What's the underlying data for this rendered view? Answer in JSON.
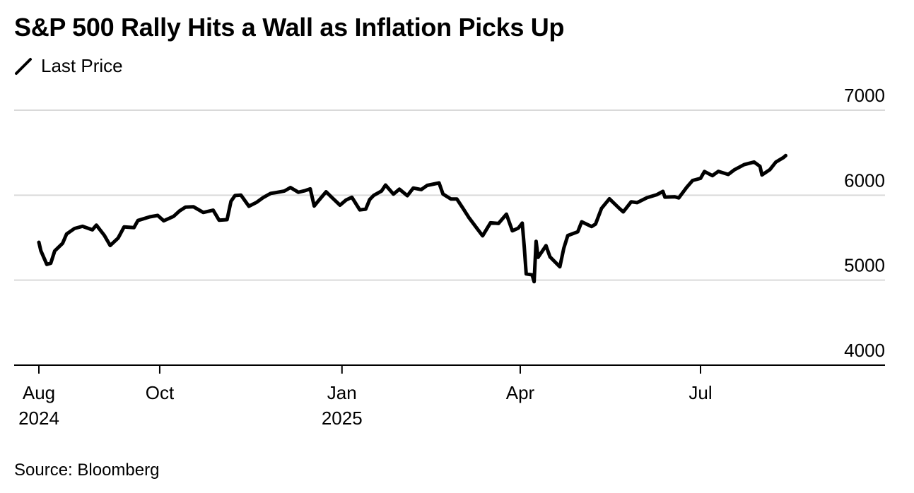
{
  "title": "S&P 500 Rally Hits a Wall as Inflation Picks Up",
  "legend": {
    "label": "Last Price"
  },
  "source": "Source: Bloomberg",
  "chart_data": {
    "type": "line",
    "title": "S&P 500 Rally Hits a Wall as Inflation Picks Up",
    "xlabel": "",
    "ylabel": "",
    "ylim": [
      4000,
      7000
    ],
    "xlim": [
      "2024-07-29",
      "2025-09-18"
    ],
    "y_ticks": [
      4000,
      5000,
      6000,
      7000
    ],
    "y_tick_labels": [
      "4000",
      "5000",
      "6000",
      "7000"
    ],
    "x_ticks": [
      {
        "date": "2024-08-01",
        "label": "Aug",
        "sublabel": "2024"
      },
      {
        "date": "2024-10-01",
        "label": "Oct",
        "sublabel": ""
      },
      {
        "date": "2025-01-01",
        "label": "Jan",
        "sublabel": "2025"
      },
      {
        "date": "2025-04-01",
        "label": "Apr",
        "sublabel": ""
      },
      {
        "date": "2025-07-01",
        "label": "Jul",
        "sublabel": ""
      }
    ],
    "grid": true,
    "legend_position": "top-left",
    "series": [
      {
        "name": "Last Price",
        "color": "#000000",
        "points": [
          [
            "2024-08-01",
            5446
          ],
          [
            "2024-08-02",
            5346
          ],
          [
            "2024-08-05",
            5186
          ],
          [
            "2024-08-07",
            5199
          ],
          [
            "2024-08-09",
            5344
          ],
          [
            "2024-08-13",
            5434
          ],
          [
            "2024-08-15",
            5543
          ],
          [
            "2024-08-19",
            5608
          ],
          [
            "2024-08-23",
            5634
          ],
          [
            "2024-08-28",
            5592
          ],
          [
            "2024-08-30",
            5648
          ],
          [
            "2024-09-03",
            5528
          ],
          [
            "2024-09-06",
            5408
          ],
          [
            "2024-09-10",
            5495
          ],
          [
            "2024-09-13",
            5626
          ],
          [
            "2024-09-18",
            5618
          ],
          [
            "2024-09-20",
            5702
          ],
          [
            "2024-09-26",
            5745
          ],
          [
            "2024-09-30",
            5762
          ],
          [
            "2024-10-03",
            5699
          ],
          [
            "2024-10-08",
            5751
          ],
          [
            "2024-10-11",
            5815
          ],
          [
            "2024-10-14",
            5859
          ],
          [
            "2024-10-18",
            5864
          ],
          [
            "2024-10-23",
            5797
          ],
          [
            "2024-10-28",
            5823
          ],
          [
            "2024-10-31",
            5705
          ],
          [
            "2024-11-04",
            5712
          ],
          [
            "2024-11-06",
            5929
          ],
          [
            "2024-11-08",
            5995
          ],
          [
            "2024-11-11",
            6001
          ],
          [
            "2024-11-15",
            5870
          ],
          [
            "2024-11-19",
            5917
          ],
          [
            "2024-11-22",
            5969
          ],
          [
            "2024-11-26",
            6021
          ],
          [
            "2024-11-29",
            6032
          ],
          [
            "2024-12-03",
            6049
          ],
          [
            "2024-12-06",
            6090
          ],
          [
            "2024-12-10",
            6034
          ],
          [
            "2024-12-13",
            6051
          ],
          [
            "2024-12-16",
            6074
          ],
          [
            "2024-12-18",
            5872
          ],
          [
            "2024-12-20",
            5930
          ],
          [
            "2024-12-24",
            6040
          ],
          [
            "2024-12-27",
            5970
          ],
          [
            "2024-12-31",
            5882
          ],
          [
            "2025-01-03",
            5942
          ],
          [
            "2025-01-06",
            5975
          ],
          [
            "2025-01-10",
            5827
          ],
          [
            "2025-01-13",
            5836
          ],
          [
            "2025-01-15",
            5949
          ],
          [
            "2025-01-17",
            5997
          ],
          [
            "2025-01-21",
            6049
          ],
          [
            "2025-01-23",
            6119
          ],
          [
            "2025-01-27",
            6012
          ],
          [
            "2025-01-30",
            6071
          ],
          [
            "2025-02-03",
            5994
          ],
          [
            "2025-02-06",
            6084
          ],
          [
            "2025-02-10",
            6066
          ],
          [
            "2025-02-13",
            6115
          ],
          [
            "2025-02-19",
            6144
          ],
          [
            "2025-02-21",
            6013
          ],
          [
            "2025-02-25",
            5955
          ],
          [
            "2025-02-28",
            5955
          ],
          [
            "2025-03-03",
            5849
          ],
          [
            "2025-03-06",
            5739
          ],
          [
            "2025-03-10",
            5614
          ],
          [
            "2025-03-13",
            5522
          ],
          [
            "2025-03-17",
            5675
          ],
          [
            "2025-03-21",
            5667
          ],
          [
            "2025-03-25",
            5777
          ],
          [
            "2025-03-28",
            5581
          ],
          [
            "2025-03-31",
            5612
          ],
          [
            "2025-04-02",
            5671
          ],
          [
            "2025-04-03",
            5396
          ],
          [
            "2025-04-04",
            5074
          ],
          [
            "2025-04-07",
            5062
          ],
          [
            "2025-04-08",
            4982
          ],
          [
            "2025-04-09",
            5457
          ],
          [
            "2025-04-10",
            5268
          ],
          [
            "2025-04-14",
            5406
          ],
          [
            "2025-04-16",
            5275
          ],
          [
            "2025-04-21",
            5158
          ],
          [
            "2025-04-23",
            5376
          ],
          [
            "2025-04-25",
            5525
          ],
          [
            "2025-04-30",
            5569
          ],
          [
            "2025-05-02",
            5687
          ],
          [
            "2025-05-07",
            5631
          ],
          [
            "2025-05-09",
            5660
          ],
          [
            "2025-05-12",
            5844
          ],
          [
            "2025-05-16",
            5958
          ],
          [
            "2025-05-21",
            5845
          ],
          [
            "2025-05-23",
            5803
          ],
          [
            "2025-05-27",
            5922
          ],
          [
            "2025-05-30",
            5912
          ],
          [
            "2025-06-04",
            5970
          ],
          [
            "2025-06-09",
            6006
          ],
          [
            "2025-06-12",
            6045
          ],
          [
            "2025-06-13",
            5977
          ],
          [
            "2025-06-18",
            5981
          ],
          [
            "2025-06-20",
            5968
          ],
          [
            "2025-06-24",
            6092
          ],
          [
            "2025-06-27",
            6173
          ],
          [
            "2025-07-01",
            6198
          ],
          [
            "2025-07-03",
            6279
          ],
          [
            "2025-07-07",
            6230
          ],
          [
            "2025-07-10",
            6280
          ],
          [
            "2025-07-15",
            6244
          ],
          [
            "2025-07-18",
            6297
          ],
          [
            "2025-07-23",
            6359
          ],
          [
            "2025-07-28",
            6390
          ],
          [
            "2025-07-31",
            6339
          ],
          [
            "2025-08-01",
            6238
          ],
          [
            "2025-08-05",
            6300
          ],
          [
            "2025-08-08",
            6389
          ],
          [
            "2025-08-12",
            6445
          ],
          [
            "2025-08-13",
            6466
          ]
        ]
      }
    ]
  }
}
